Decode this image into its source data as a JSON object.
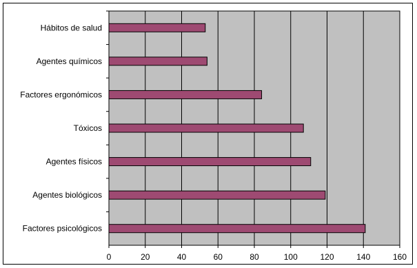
{
  "chart_data": {
    "type": "bar",
    "orientation": "horizontal",
    "categories": [
      "Hábitos de salud",
      "Agentes químicos",
      "Factores ergonómicos",
      "Tóxicos",
      "Agentes físicos",
      "Agentes biológicos",
      "Factores psicológicos"
    ],
    "values": [
      53,
      54,
      84,
      107,
      111,
      119,
      141
    ],
    "xlim": [
      0,
      160
    ],
    "xticks": [
      "0",
      "20",
      "40",
      "60",
      "80",
      "100",
      "120",
      "140",
      "160"
    ],
    "grid": true,
    "colors": {
      "bar_fill": "#9E4A72",
      "bar_stroke": "#000000",
      "plot_background": "#C0C0C0",
      "gridline": "#000000"
    }
  }
}
